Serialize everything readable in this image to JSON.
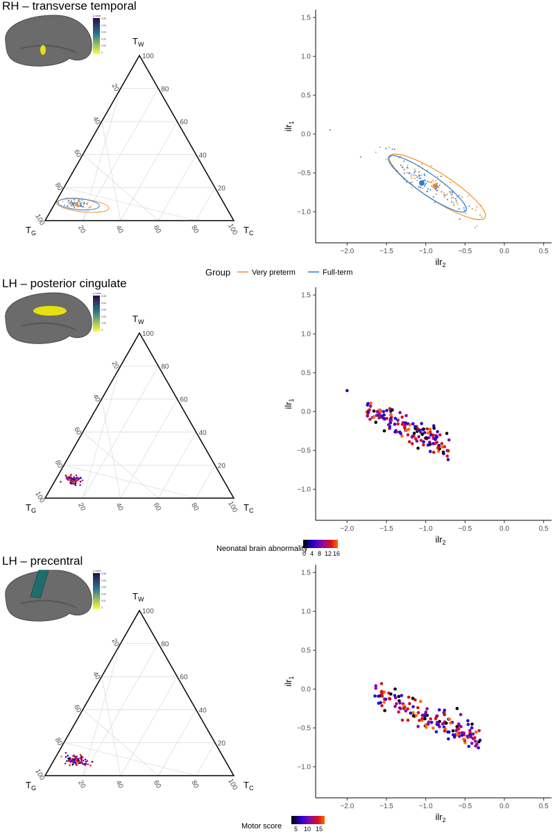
{
  "colors": {
    "very_preterm": "#F28E2B",
    "full_term": "#2C7BD0",
    "grid": "#dcdcdc",
    "brain": "#6b6b6b",
    "pval_low": "#ffff33",
    "pval_high": "#2b0a4a",
    "abn_scale": [
      "#000000",
      "#2a00d6",
      "#8a0aa0",
      "#d4141e",
      "#ff6a00"
    ]
  },
  "chart_data": [
    {
      "type": "scatter",
      "title": "RH – transverse temporal",
      "tern_vertices": {
        "top": "T",
        "top_sub": "W",
        "left": "T",
        "left_sub": "G",
        "right": "T",
        "right_sub": "C"
      },
      "tern_left_ticks": [
        "20",
        "40",
        "60",
        "80",
        "100"
      ],
      "tern_right_ticks": [
        "100",
        "80",
        "60",
        "40",
        "20"
      ],
      "tern_bottom_ticks": [
        "20",
        "40",
        "60",
        "80",
        "100"
      ],
      "inset_pvalue_ticks": [
        "p-value",
        "0.05",
        "0.04",
        "0.03",
        "0.02",
        "0.01",
        "0"
      ],
      "inset_region_color": "#e6e010",
      "xlabel": "ilr",
      "xlabel_sub": "2",
      "ylabel": "ilr",
      "ylabel_sub": "1",
      "xlim": [
        -2.4,
        0.6
      ],
      "ylim": [
        -1.4,
        1.6
      ],
      "xticks": [
        "-2.0",
        "-1.5",
        "-1.0",
        "-0.5",
        "0.0",
        "0.5"
      ],
      "yticks": [
        "1.5",
        "1.0",
        "0.5",
        "0.0",
        "-0.5",
        "-1.0"
      ],
      "groups": [
        {
          "name": "Very preterm",
          "color": "#F28E2B",
          "mean": [
            -0.88,
            -0.67
          ],
          "ellipse": {
            "center": [
              -0.85,
              -0.68
            ],
            "rx": 0.72,
            "ry": 0.17,
            "angle_deg": -33
          }
        },
        {
          "name": "Full-term",
          "color": "#2C7BD0",
          "mean": [
            -1.05,
            -0.63
          ],
          "ellipse": {
            "center": [
              -0.98,
              -0.64
            ],
            "rx": 0.6,
            "ry": 0.13,
            "angle_deg": -35
          }
        }
      ],
      "tern_cluster": {
        "wG": [
          0.78,
          0.1,
          0.12
        ],
        "spread": 0.02
      },
      "legend": {
        "title": "Group",
        "entries": [
          "Very preterm",
          "Full-term"
        ]
      }
    },
    {
      "type": "scatter",
      "title": "LH – posterior cingulate",
      "tern_vertices": {
        "top": "T",
        "top_sub": "W",
        "left": "T",
        "left_sub": "G",
        "right": "T",
        "right_sub": "C"
      },
      "tern_left_ticks": [
        "20",
        "40",
        "60",
        "80",
        "100"
      ],
      "tern_right_ticks": [
        "100",
        "80",
        "60",
        "40",
        "20"
      ],
      "tern_bottom_ticks": [
        "20",
        "40",
        "60",
        "80",
        "100"
      ],
      "inset_pvalue_ticks": [
        "p-value",
        "0.05",
        "0.04",
        "0.03",
        "0.02",
        "0.01",
        "0"
      ],
      "inset_region_color": "#e6e010",
      "xlabel": "ilr",
      "xlabel_sub": "2",
      "ylabel": "ilr",
      "ylabel_sub": "1",
      "xlim": [
        -2.4,
        0.6
      ],
      "ylim": [
        -1.4,
        1.6
      ],
      "xticks": [
        "-2.0",
        "-1.5",
        "-1.0",
        "-0.5",
        "0.0",
        "0.5"
      ],
      "yticks": [
        "1.5",
        "1.0",
        "0.5",
        "0.0",
        "-0.5",
        "-1.0"
      ],
      "cloud": {
        "x_range": [
          -1.75,
          -0.7
        ],
        "center": [
          -1.3,
          -0.18
        ],
        "slope": -0.5,
        "n": 150
      },
      "outlier": [
        -2.0,
        0.27
      ],
      "tern_cluster": {
        "wG": [
          0.8,
          0.11,
          0.09
        ],
        "spread": 0.018
      },
      "legend": {
        "title": "Neonatal brain abnormality",
        "ticks": [
          "0",
          "4",
          "8",
          "12",
          "16"
        ]
      }
    },
    {
      "type": "scatter",
      "title": "LH – precentral",
      "tern_vertices": {
        "top": "T",
        "top_sub": "W",
        "left": "T",
        "left_sub": "G",
        "right": "T",
        "right_sub": "C"
      },
      "tern_left_ticks": [
        "20",
        "40",
        "60",
        "80",
        "100"
      ],
      "tern_right_ticks": [
        "100",
        "80",
        "60",
        "40",
        "20"
      ],
      "tern_bottom_ticks": [
        "20",
        "40",
        "60",
        "80",
        "100"
      ],
      "inset_pvalue_ticks": [
        "p-value",
        "0.05",
        "0.04",
        "0.03",
        "0.02",
        "0.01",
        "0"
      ],
      "inset_region_color": "#1f6e6e",
      "xlabel": "ilr",
      "xlabel_sub": "2",
      "ylabel": "ilr",
      "ylabel_sub": "1",
      "xlim": [
        -2.4,
        0.6
      ],
      "ylim": [
        -1.4,
        1.6
      ],
      "xticks": [
        "-2.0",
        "-1.5",
        "-1.0",
        "-0.5",
        "0.0",
        "0.5"
      ],
      "yticks": [
        "1.5",
        "1.0",
        "0.5",
        "0.0",
        "-0.5",
        "-1.0"
      ],
      "cloud": {
        "x_range": [
          -1.65,
          -0.3
        ],
        "center": [
          -1.1,
          -0.3
        ],
        "slope": -0.45,
        "n": 160
      },
      "tern_cluster": {
        "wG": [
          0.79,
          0.09,
          0.12
        ],
        "spread": 0.02
      },
      "legend": {
        "title": "Motor score",
        "ticks": [
          "5",
          "10",
          "15"
        ]
      }
    }
  ]
}
